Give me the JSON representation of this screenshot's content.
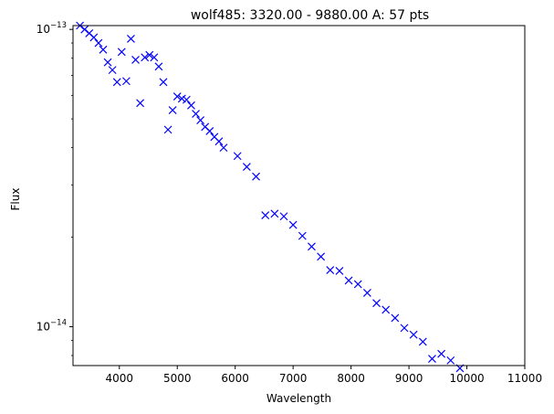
{
  "chart_data": {
    "type": "scatter",
    "title": "wolf485: 3320.00 - 9880.00 A: 57 pts",
    "xlabel": "Wavelength",
    "ylabel": "Flux",
    "xlim": [
      3200,
      11000
    ],
    "ylim": [
      7.4e-15,
      1.03e-13
    ],
    "yscale": "log",
    "grid": false,
    "legend": "none",
    "marker": "x",
    "color": "#0000ff",
    "x_ticks": [
      4000,
      5000,
      6000,
      7000,
      8000,
      9000,
      10000,
      11000
    ],
    "x_tick_labels": [
      "4000",
      "5000",
      "6000",
      "7000",
      "8000",
      "9000",
      "10000",
      "11000"
    ],
    "y_major_ticks": [
      1e-14,
      1e-13
    ],
    "y_tick_labels": [
      {
        "base": "10",
        "exp": "−14"
      },
      {
        "base": "10",
        "exp": "−13"
      }
    ],
    "points": [
      [
        3320,
        1.03e-13
      ],
      [
        3400,
        1e-13
      ],
      [
        3480,
        9.7e-14
      ],
      [
        3560,
        9.4e-14
      ],
      [
        3640,
        9e-14
      ],
      [
        3720,
        8.55e-14
      ],
      [
        3800,
        7.75e-14
      ],
      [
        3880,
        7.3e-14
      ],
      [
        3960,
        6.65e-14
      ],
      [
        4040,
        8.4e-14
      ],
      [
        4120,
        6.7e-14
      ],
      [
        4200,
        9.3e-14
      ],
      [
        4280,
        7.9e-14
      ],
      [
        4360,
        5.65e-14
      ],
      [
        4440,
        8.05e-14
      ],
      [
        4520,
        8.2e-14
      ],
      [
        4600,
        8.05e-14
      ],
      [
        4680,
        7.5e-14
      ],
      [
        4760,
        6.65e-14
      ],
      [
        4840,
        4.6e-14
      ],
      [
        4920,
        5.35e-14
      ],
      [
        5000,
        5.95e-14
      ],
      [
        5080,
        5.85e-14
      ],
      [
        5160,
        5.8e-14
      ],
      [
        5240,
        5.55e-14
      ],
      [
        5320,
        5.2e-14
      ],
      [
        5400,
        4.95e-14
      ],
      [
        5480,
        4.7e-14
      ],
      [
        5560,
        4.55e-14
      ],
      [
        5640,
        4.35e-14
      ],
      [
        5720,
        4.2e-14
      ],
      [
        5800,
        4e-14
      ],
      [
        6040,
        3.75e-14
      ],
      [
        6200,
        3.45e-14
      ],
      [
        6360,
        3.2e-14
      ],
      [
        6520,
        2.37e-14
      ],
      [
        6680,
        2.4e-14
      ],
      [
        6840,
        2.35e-14
      ],
      [
        7000,
        2.2e-14
      ],
      [
        7160,
        2.02e-14
      ],
      [
        7320,
        1.86e-14
      ],
      [
        7480,
        1.72e-14
      ],
      [
        7640,
        1.55e-14
      ],
      [
        7800,
        1.54e-14
      ],
      [
        7960,
        1.43e-14
      ],
      [
        8120,
        1.39e-14
      ],
      [
        8280,
        1.3e-14
      ],
      [
        8440,
        1.2e-14
      ],
      [
        8600,
        1.14e-14
      ],
      [
        8760,
        1.07e-14
      ],
      [
        8920,
        9.9e-15
      ],
      [
        9080,
        9.4e-15
      ],
      [
        9240,
        8.9e-15
      ],
      [
        9400,
        7.8e-15
      ],
      [
        9560,
        8.1e-15
      ],
      [
        9720,
        7.7e-15
      ],
      [
        9880,
        7.25e-15
      ]
    ]
  }
}
